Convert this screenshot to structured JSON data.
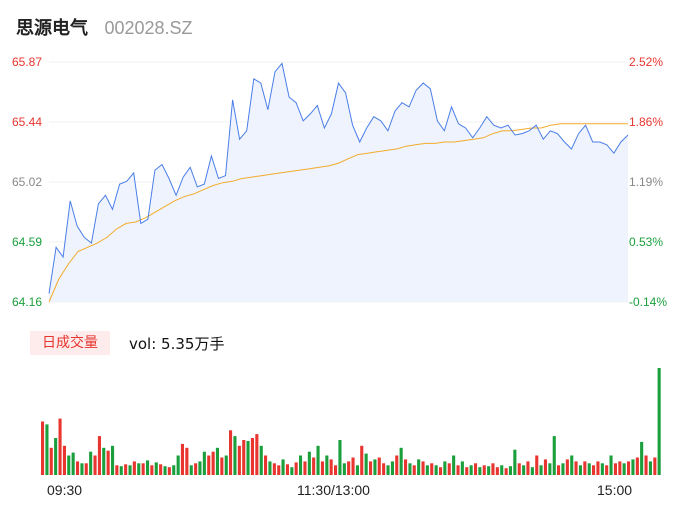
{
  "header": {
    "name": "思源电气",
    "code": "002028.SZ"
  },
  "colors": {
    "up": "#e8352f",
    "down": "#1a9f3c",
    "flat": "#888888",
    "price_line": "#4a7ee8",
    "avg_line": "#f2ac2c",
    "area_fill": "#eef3fd"
  },
  "volume_panel": {
    "badge": "日成交量",
    "readout": "vol: 5.35万手"
  },
  "chart_data": {
    "type": "line",
    "left_axis_ticks": [
      "65.87",
      "65.44",
      "65.02",
      "64.59",
      "64.16"
    ],
    "right_axis_ticks": [
      "2.52%",
      "1.86%",
      "1.19%",
      "0.53%",
      "-0.14%"
    ],
    "ylim": [
      64.16,
      65.87
    ],
    "time_ticks": [
      "09:30",
      "11:30/13:00",
      "15:00"
    ],
    "series": [
      {
        "values": [
          64.16,
          64.32,
          64.43,
          64.52,
          64.55,
          64.58,
          64.62,
          64.68,
          64.72,
          64.73,
          64.76,
          64.8,
          64.84,
          64.88,
          64.91,
          64.93,
          64.96,
          64.99,
          65.01,
          65.02,
          65.04,
          65.05,
          65.06,
          65.07,
          65.08,
          65.09,
          65.1,
          65.11,
          65.12,
          65.13,
          65.15,
          65.18,
          65.21,
          65.22,
          65.23,
          65.24,
          65.25,
          65.27,
          65.28,
          65.29,
          65.29,
          65.3,
          65.3,
          65.31,
          65.32,
          65.33,
          65.36,
          65.38,
          65.38,
          65.39,
          65.4,
          65.4,
          65.42,
          65.43,
          65.43,
          65.43,
          65.43,
          65.43,
          65.43,
          65.43,
          65.43
        ]
      },
      {
        "values": [
          64.22,
          64.55,
          64.48,
          64.88,
          64.7,
          64.62,
          64.58,
          64.86,
          64.92,
          64.82,
          65.0,
          65.02,
          65.08,
          64.72,
          64.75,
          65.1,
          65.14,
          65.04,
          64.92,
          65.05,
          65.12,
          64.98,
          65.0,
          65.2,
          65.04,
          65.06,
          65.6,
          65.32,
          65.38,
          65.75,
          65.72,
          65.53,
          65.8,
          65.86,
          65.62,
          65.58,
          65.45,
          65.5,
          65.56,
          65.4,
          65.5,
          65.72,
          65.65,
          65.42,
          65.3,
          65.4,
          65.48,
          65.45,
          65.38,
          65.52,
          65.58,
          65.55,
          65.67,
          65.72,
          65.68,
          65.45,
          65.38,
          65.55,
          65.43,
          65.4,
          65.33,
          65.4,
          65.48,
          65.42,
          65.4,
          65.42,
          65.35,
          65.36,
          65.38,
          65.42,
          65.32,
          65.38,
          65.36,
          65.3,
          65.25,
          65.36,
          65.42,
          65.3,
          65.3,
          65.28,
          65.22,
          65.3,
          65.35
        ]
      }
    ],
    "volume": [
      {
        "v": 55,
        "c": "up"
      },
      {
        "v": 52,
        "c": "down"
      },
      {
        "v": 28,
        "c": "up"
      },
      {
        "v": 38,
        "c": "down"
      },
      {
        "v": 58,
        "c": "up"
      },
      {
        "v": 30,
        "c": "up"
      },
      {
        "v": 20,
        "c": "down"
      },
      {
        "v": 23,
        "c": "down"
      },
      {
        "v": 14,
        "c": "up"
      },
      {
        "v": 12,
        "c": "down"
      },
      {
        "v": 12,
        "c": "up"
      },
      {
        "v": 24,
        "c": "down"
      },
      {
        "v": 20,
        "c": "up"
      },
      {
        "v": 40,
        "c": "up"
      },
      {
        "v": 28,
        "c": "down"
      },
      {
        "v": 25,
        "c": "up"
      },
      {
        "v": 30,
        "c": "down"
      },
      {
        "v": 10,
        "c": "up"
      },
      {
        "v": 9,
        "c": "down"
      },
      {
        "v": 11,
        "c": "up"
      },
      {
        "v": 10,
        "c": "down"
      },
      {
        "v": 14,
        "c": "up"
      },
      {
        "v": 12,
        "c": "down"
      },
      {
        "v": 12,
        "c": "up"
      },
      {
        "v": 15,
        "c": "down"
      },
      {
        "v": 10,
        "c": "up"
      },
      {
        "v": 13,
        "c": "down"
      },
      {
        "v": 11,
        "c": "up"
      },
      {
        "v": 9,
        "c": "down"
      },
      {
        "v": 8,
        "c": "up"
      },
      {
        "v": 10,
        "c": "down"
      },
      {
        "v": 20,
        "c": "down"
      },
      {
        "v": 32,
        "c": "up"
      },
      {
        "v": 28,
        "c": "up"
      },
      {
        "v": 10,
        "c": "down"
      },
      {
        "v": 12,
        "c": "up"
      },
      {
        "v": 14,
        "c": "down"
      },
      {
        "v": 24,
        "c": "down"
      },
      {
        "v": 20,
        "c": "up"
      },
      {
        "v": 24,
        "c": "up"
      },
      {
        "v": 28,
        "c": "down"
      },
      {
        "v": 18,
        "c": "up"
      },
      {
        "v": 20,
        "c": "down"
      },
      {
        "v": 46,
        "c": "up"
      },
      {
        "v": 40,
        "c": "down"
      },
      {
        "v": 30,
        "c": "up"
      },
      {
        "v": 36,
        "c": "up"
      },
      {
        "v": 35,
        "c": "down"
      },
      {
        "v": 38,
        "c": "up"
      },
      {
        "v": 42,
        "c": "up"
      },
      {
        "v": 30,
        "c": "down"
      },
      {
        "v": 20,
        "c": "up"
      },
      {
        "v": 14,
        "c": "down"
      },
      {
        "v": 12,
        "c": "up"
      },
      {
        "v": 10,
        "c": "up"
      },
      {
        "v": 16,
        "c": "down"
      },
      {
        "v": 11,
        "c": "up"
      },
      {
        "v": 8,
        "c": "down"
      },
      {
        "v": 13,
        "c": "up"
      },
      {
        "v": 20,
        "c": "down"
      },
      {
        "v": 14,
        "c": "up"
      },
      {
        "v": 24,
        "c": "down"
      },
      {
        "v": 18,
        "c": "up"
      },
      {
        "v": 30,
        "c": "down"
      },
      {
        "v": 14,
        "c": "up"
      },
      {
        "v": 20,
        "c": "down"
      },
      {
        "v": 16,
        "c": "up"
      },
      {
        "v": 10,
        "c": "up"
      },
      {
        "v": 36,
        "c": "down"
      },
      {
        "v": 12,
        "c": "down"
      },
      {
        "v": 14,
        "c": "up"
      },
      {
        "v": 18,
        "c": "up"
      },
      {
        "v": 10,
        "c": "down"
      },
      {
        "v": 30,
        "c": "up"
      },
      {
        "v": 22,
        "c": "down"
      },
      {
        "v": 14,
        "c": "up"
      },
      {
        "v": 16,
        "c": "down"
      },
      {
        "v": 18,
        "c": "up"
      },
      {
        "v": 12,
        "c": "up"
      },
      {
        "v": 10,
        "c": "down"
      },
      {
        "v": 14,
        "c": "down"
      },
      {
        "v": 20,
        "c": "up"
      },
      {
        "v": 28,
        "c": "down"
      },
      {
        "v": 16,
        "c": "up"
      },
      {
        "v": 12,
        "c": "down"
      },
      {
        "v": 10,
        "c": "up"
      },
      {
        "v": 16,
        "c": "down"
      },
      {
        "v": 14,
        "c": "up"
      },
      {
        "v": 10,
        "c": "down"
      },
      {
        "v": 12,
        "c": "up"
      },
      {
        "v": 10,
        "c": "down"
      },
      {
        "v": 8,
        "c": "up"
      },
      {
        "v": 14,
        "c": "down"
      },
      {
        "v": 12,
        "c": "up"
      },
      {
        "v": 20,
        "c": "down"
      },
      {
        "v": 10,
        "c": "up"
      },
      {
        "v": 14,
        "c": "down"
      },
      {
        "v": 8,
        "c": "up"
      },
      {
        "v": 10,
        "c": "down"
      },
      {
        "v": 12,
        "c": "up"
      },
      {
        "v": 8,
        "c": "down"
      },
      {
        "v": 10,
        "c": "up"
      },
      {
        "v": 9,
        "c": "down"
      },
      {
        "v": 12,
        "c": "up"
      },
      {
        "v": 8,
        "c": "up"
      },
      {
        "v": 10,
        "c": "down"
      },
      {
        "v": 7,
        "c": "up"
      },
      {
        "v": 9,
        "c": "down"
      },
      {
        "v": 26,
        "c": "down"
      },
      {
        "v": 12,
        "c": "up"
      },
      {
        "v": 10,
        "c": "down"
      },
      {
        "v": 14,
        "c": "up"
      },
      {
        "v": 8,
        "c": "down"
      },
      {
        "v": 20,
        "c": "up"
      },
      {
        "v": 10,
        "c": "down"
      },
      {
        "v": 16,
        "c": "up"
      },
      {
        "v": 12,
        "c": "down"
      },
      {
        "v": 40,
        "c": "down"
      },
      {
        "v": 10,
        "c": "up"
      },
      {
        "v": 12,
        "c": "down"
      },
      {
        "v": 16,
        "c": "up"
      },
      {
        "v": 20,
        "c": "down"
      },
      {
        "v": 14,
        "c": "up"
      },
      {
        "v": 10,
        "c": "down"
      },
      {
        "v": 14,
        "c": "up"
      },
      {
        "v": 12,
        "c": "down"
      },
      {
        "v": 10,
        "c": "up"
      },
      {
        "v": 14,
        "c": "up"
      },
      {
        "v": 12,
        "c": "down"
      },
      {
        "v": 10,
        "c": "up"
      },
      {
        "v": 20,
        "c": "down"
      },
      {
        "v": 12,
        "c": "up"
      },
      {
        "v": 14,
        "c": "up"
      },
      {
        "v": 12,
        "c": "down"
      },
      {
        "v": 14,
        "c": "up"
      },
      {
        "v": 16,
        "c": "down"
      },
      {
        "v": 18,
        "c": "up"
      },
      {
        "v": 34,
        "c": "down"
      },
      {
        "v": 20,
        "c": "up"
      },
      {
        "v": 14,
        "c": "down"
      },
      {
        "v": 18,
        "c": "up"
      },
      {
        "v": 110,
        "c": "down"
      }
    ]
  }
}
